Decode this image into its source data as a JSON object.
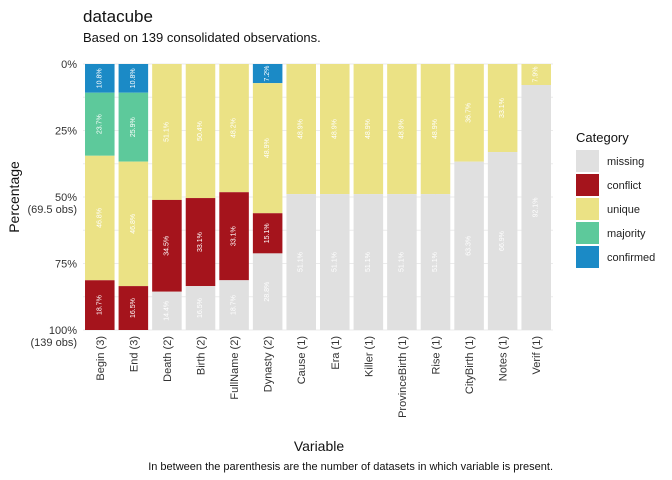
{
  "chart_data": {
    "type": "bar",
    "stacked": true,
    "orientation": "vertical",
    "title": "datacube",
    "subtitle": "Based on 139 consolidated observations.",
    "xlabel": "Variable",
    "ylabel": "Percentage",
    "caption": "In between the parenthesis are the number of datasets in which variable is present.",
    "ylim": [
      0,
      100
    ],
    "y_reversed": true,
    "grid": true,
    "yticks": [
      {
        "value": 0,
        "label": "0%"
      },
      {
        "value": 25,
        "label": "25%"
      },
      {
        "value": 50,
        "label": "50%\n(69.5 obs)"
      },
      {
        "value": 75,
        "label": "75%"
      },
      {
        "value": 100,
        "label": "100%\n(139 obs)"
      }
    ],
    "categories": [
      "Begin (3)",
      "End (3)",
      "Death (2)",
      "Birth (2)",
      "FullName (2)",
      "Dynasty (2)",
      "Cause (1)",
      "Era (1)",
      "Killer (1)",
      "ProvinceBirth (1)",
      "Rise (1)",
      "CityBirth (1)",
      "Notes (1)",
      "Verif (1)"
    ],
    "stack_order": [
      "confirmed",
      "majority",
      "unique",
      "conflict",
      "missing"
    ],
    "series": [
      {
        "name": "missing",
        "color": "#e0e0e0",
        "values": [
          0,
          0,
          14.4,
          16.5,
          18.7,
          28.8,
          51.1,
          51.1,
          51.1,
          51.1,
          51.1,
          63.3,
          66.9,
          92.1
        ],
        "labels": [
          "",
          "",
          "14.4%",
          "16.5%",
          "18.7%",
          "28.8%",
          "51.1%",
          "51.1%",
          "51.1%",
          "51.1%",
          "51.1%",
          "63.3%",
          "66.9%",
          "92.1%"
        ]
      },
      {
        "name": "conflict",
        "color": "#a5141c",
        "values": [
          18.7,
          16.5,
          34.5,
          33.1,
          33.1,
          15.1,
          0,
          0,
          0,
          0,
          0,
          0,
          0,
          0
        ],
        "labels": [
          "18.7%",
          "16.5%",
          "34.5%",
          "33.1%",
          "33.1%",
          "15.1%",
          "",
          "",
          "",
          "",
          "",
          "",
          "",
          ""
        ]
      },
      {
        "name": "unique",
        "color": "#ebe285",
        "values": [
          46.8,
          46.8,
          51.1,
          50.4,
          48.2,
          48.9,
          48.9,
          48.9,
          48.9,
          48.9,
          48.9,
          36.7,
          33.1,
          7.9
        ],
        "labels": [
          "46.8%",
          "46.8%",
          "51.1%",
          "50.4%",
          "48.2%",
          "48.9%",
          "48.9%",
          "48.9%",
          "48.9%",
          "48.9%",
          "48.9%",
          "36.7%",
          "33.1%",
          "7.9%"
        ]
      },
      {
        "name": "majority",
        "color": "#5dc99b",
        "values": [
          23.7,
          25.9,
          0,
          0,
          0,
          0,
          0,
          0,
          0,
          0,
          0,
          0,
          0,
          0
        ],
        "labels": [
          "23.7%",
          "25.9%",
          "",
          "",
          "",
          "",
          "",
          "",
          "",
          "",
          "",
          "",
          "",
          ""
        ]
      },
      {
        "name": "confirmed",
        "color": "#1b8ac6",
        "values": [
          10.8,
          10.8,
          0,
          0,
          0,
          7.2,
          0,
          0,
          0,
          0,
          0,
          0,
          0,
          0
        ],
        "labels": [
          "10.8%",
          "10.8%",
          "",
          "",
          "",
          "7.2%",
          "",
          "",
          "",
          "",
          "",
          "",
          "",
          ""
        ]
      }
    ],
    "legend": {
      "title": "Category",
      "position": "right",
      "items": [
        {
          "label": "missing",
          "color": "#e0e0e0"
        },
        {
          "label": "conflict",
          "color": "#a5141c"
        },
        {
          "label": "unique",
          "color": "#ebe285"
        },
        {
          "label": "majority",
          "color": "#5dc99b"
        },
        {
          "label": "confirmed",
          "color": "#1b8ac6"
        }
      ]
    }
  }
}
